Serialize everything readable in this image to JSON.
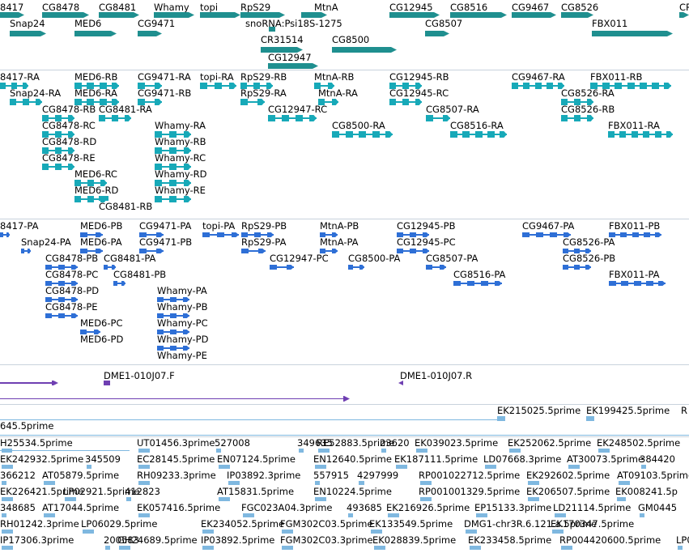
{
  "colors": {
    "gene": "#1f8f8f",
    "transcript": "#17a9b8",
    "protein": "#2e6fd6",
    "clone": "#6f3fb2",
    "est": "#7fb8e0",
    "separator": "#c8d2dc"
  },
  "tracks": {
    "genes": [
      {
        "name": "8417",
        "row": 0
      },
      {
        "name": "CG8478",
        "row": 0
      },
      {
        "name": "CG8481",
        "row": 0
      },
      {
        "name": "Whamy",
        "row": 0
      },
      {
        "name": "topi",
        "row": 0
      },
      {
        "name": "RpS29",
        "row": 0
      },
      {
        "name": "MtnA",
        "row": 0
      },
      {
        "name": "CG12945",
        "row": 0
      },
      {
        "name": "CG8516",
        "row": 0
      },
      {
        "name": "CG9467",
        "row": 0
      },
      {
        "name": "CG8526",
        "row": 0
      },
      {
        "name": "CR",
        "row": 0
      },
      {
        "name": "Snap24",
        "row": 1
      },
      {
        "name": "MED6",
        "row": 1
      },
      {
        "name": "CG9471",
        "row": 1
      },
      {
        "name": "snoRNA:Psi18S-1275",
        "row": 1
      },
      {
        "name": "CG8507",
        "row": 1
      },
      {
        "name": "FBX011",
        "row": 1
      },
      {
        "name": "CR31514",
        "row": 2
      },
      {
        "name": "CG8500",
        "row": 2
      },
      {
        "name": "CG12947",
        "row": 3
      }
    ],
    "transcripts": [
      "8417-RA",
      "MED6-RB",
      "CG9471-RA",
      "topi-RA",
      "RpS29-RB",
      "MtnA-RB",
      "CG12945-RB",
      "CG9467-RA",
      "FBX011-RB",
      "Snap24-RA",
      "MED6-RA",
      "CG9471-RB",
      "RpS29-RA",
      "MtnA-RA",
      "CG12945-RC",
      "CG8526-RA",
      "CG8478-RB",
      "CG8481-RA",
      "CG12947-RC",
      "CG8507-RA",
      "CG8526-RB",
      "CG8478-RC",
      "Whamy-RA",
      "CG8500-RA",
      "CG8516-RA",
      "FBX011-RA",
      "CG8478-RD",
      "Whamy-RB",
      "CG8478-RE",
      "Whamy-RC",
      "MED6-RC",
      "Whamy-RD",
      "MED6-RD",
      "Whamy-RE",
      "CG8481-RB"
    ],
    "proteins": [
      "8417-PA",
      "MED6-PB",
      "CG9471-PA",
      "topi-PA",
      "RpS29-PB",
      "MtnA-PB",
      "CG12945-PB",
      "CG9467-PA",
      "FBX011-PB",
      "Snap24-PA",
      "MED6-PA",
      "CG9471-PB",
      "RpS29-PA",
      "MtnA-PA",
      "CG12945-PC",
      "CG8526-PA",
      "CG8478-PB",
      "CG8481-PA",
      "CG12947-PC",
      "CG8500-PA",
      "CG8507-PA",
      "CG8526-PB",
      "CG8478-PC",
      "CG8481-PB",
      "CG8516-PA",
      "FBX011-PA",
      "CG8478-PD",
      "Whamy-PA",
      "CG8478-PE",
      "Whamy-PB",
      "MED6-PC",
      "Whamy-PC",
      "MED6-PD",
      "Whamy-PD",
      "Whamy-PE"
    ],
    "clones": [
      "DME1-010J07.F",
      "DME1-010J07.R"
    ],
    "est_long": [
      "EK215025.5prime",
      "EK199425.5prime",
      "R",
      "645.5prime"
    ],
    "est": [
      "H25534.5prime",
      "UT01456.3prime",
      "527008",
      "349635",
      "RE52883.5prime",
      "23620",
      "EK039023.5prime",
      "EK252062.5prime",
      "EK248502.5prime",
      "EK242932.5prime",
      "345509",
      "EC28145.5prime",
      "EN07124.5prime",
      "EN12640.5prime",
      "EK187111.5prime",
      "LD07668.3prime",
      "AT30073.5prime",
      "384420",
      "366212",
      "AT05879.5prime",
      "RH09233.3prime",
      "IP03892.3prime",
      "557915",
      "4297999",
      "RP001022712.5prime",
      "EK292602.5prime",
      "AT09103.5prime",
      "EK226421.5prime",
      "LP02921.5prime",
      "412823",
      "AT15831.5prime",
      "EN10224.5prime",
      "RP001001329.5prime",
      "EK206507.5prime",
      "EK008241.5p",
      "348685",
      "AT17044.5prime",
      "EK057416.5prime",
      "FGC023A04.3prime",
      "493685",
      "EK216926.5prime",
      "EP15133.3prime",
      "LD21114.5prime",
      "GM0445",
      "RH01242.3prime",
      "LP06029.5prime",
      "EK234052.5prime",
      "FGM302C03.5prime",
      "EK133549.5prime",
      "DMG1-chr3R.6.121.a.5prime",
      "EK170347.5prime",
      "IP17306.3prime",
      "200583",
      "GH24689.5prime",
      "IP03892.5prime",
      "FGM302C03.3prime",
      "EK028839.5prime",
      "EK233458.5prime",
      "RP004420600.5prime",
      "LP07"
    ]
  }
}
